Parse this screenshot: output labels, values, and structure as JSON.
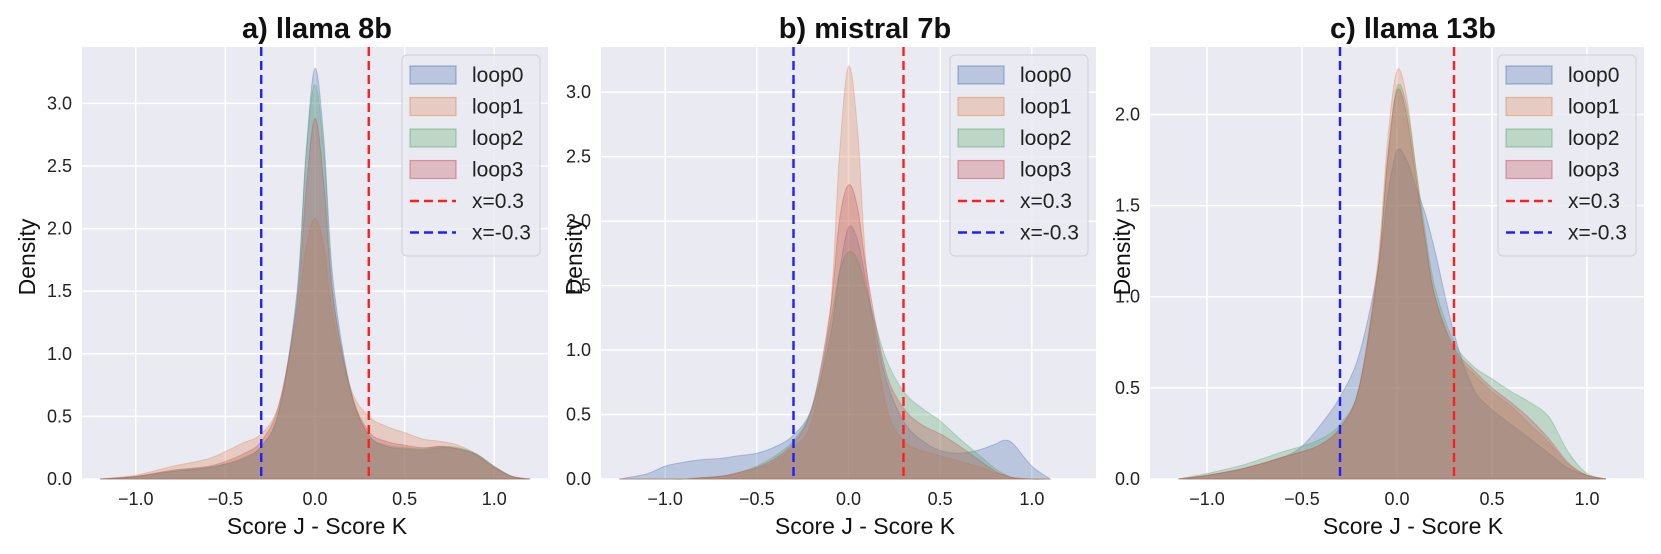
{
  "chart_data": [
    {
      "type": "area",
      "title": "a) llama 8b",
      "xlabel": "Score J - Score K",
      "ylabel": "Density",
      "xlim": [
        -1.3,
        1.3
      ],
      "ylim": [
        0,
        3.45
      ],
      "xticks": [
        -1.0,
        -0.5,
        0.0,
        0.5,
        1.0
      ],
      "xtick_labels": [
        "−1.0",
        "−0.5",
        "0.0",
        "0.5",
        "1.0"
      ],
      "yticks": [
        0,
        0.5,
        1.0,
        1.5,
        2.0,
        2.5,
        3.0
      ],
      "ytick_labels": [
        "0.0",
        "0.5",
        "1.0",
        "1.5",
        "2.0",
        "2.5",
        "3.0"
      ],
      "x": [
        -1.2,
        -1.0,
        -0.8,
        -0.6,
        -0.5,
        -0.4,
        -0.3,
        -0.2,
        -0.1,
        -0.05,
        0.0,
        0.05,
        0.1,
        0.2,
        0.3,
        0.4,
        0.5,
        0.6,
        0.7,
        0.8,
        0.9,
        1.0,
        1.1,
        1.2
      ],
      "series": [
        {
          "name": "loop0",
          "color": "#4c72b0",
          "values": [
            0,
            0.02,
            0.06,
            0.09,
            0.12,
            0.16,
            0.26,
            0.55,
            1.5,
            2.6,
            3.28,
            2.7,
            1.6,
            0.7,
            0.35,
            0.26,
            0.24,
            0.23,
            0.25,
            0.24,
            0.2,
            0.1,
            0.02,
            0
          ]
        },
        {
          "name": "loop1",
          "color": "#dd8452",
          "values": [
            0,
            0.03,
            0.1,
            0.16,
            0.22,
            0.29,
            0.36,
            0.6,
            1.3,
            1.85,
            2.08,
            1.85,
            1.3,
            0.72,
            0.5,
            0.42,
            0.37,
            0.32,
            0.3,
            0.27,
            0.2,
            0.1,
            0.02,
            0
          ]
        },
        {
          "name": "loop2",
          "color": "#55a868",
          "values": [
            0,
            0.02,
            0.06,
            0.09,
            0.12,
            0.17,
            0.26,
            0.55,
            1.45,
            2.6,
            3.15,
            2.6,
            1.5,
            0.7,
            0.35,
            0.27,
            0.25,
            0.24,
            0.26,
            0.25,
            0.2,
            0.1,
            0.02,
            0
          ]
        },
        {
          "name": "loop3",
          "color": "#c44e52",
          "values": [
            0,
            0.02,
            0.07,
            0.1,
            0.14,
            0.2,
            0.3,
            0.6,
            1.4,
            2.3,
            2.88,
            2.35,
            1.45,
            0.7,
            0.38,
            0.3,
            0.27,
            0.25,
            0.26,
            0.24,
            0.19,
            0.09,
            0.02,
            0
          ]
        }
      ],
      "vlines": [
        {
          "name": "x=0.3",
          "x": 0.3,
          "color": "#ff1f1f"
        },
        {
          "name": "x=-0.3",
          "x": -0.3,
          "color": "#1f1fff"
        }
      ],
      "legend": "top-right",
      "grid": true
    },
    {
      "type": "area",
      "title": "b) mistral 7b",
      "xlabel": "Score J - Score K",
      "ylabel": "Density",
      "xlim": [
        -1.35,
        1.35
      ],
      "ylim": [
        0,
        3.35
      ],
      "xticks": [
        -1.0,
        -0.5,
        0.0,
        0.5,
        1.0
      ],
      "xtick_labels": [
        "−1.0",
        "−0.5",
        "0.0",
        "0.5",
        "1.0"
      ],
      "yticks": [
        0,
        0.5,
        1.0,
        1.5,
        2.0,
        2.5,
        3.0
      ],
      "ytick_labels": [
        "0.0",
        "0.5",
        "1.0",
        "1.5",
        "2.0",
        "2.5",
        "3.0"
      ],
      "x": [
        -1.25,
        -1.1,
        -1.0,
        -0.9,
        -0.8,
        -0.7,
        -0.6,
        -0.5,
        -0.4,
        -0.3,
        -0.2,
        -0.1,
        -0.05,
        0.0,
        0.05,
        0.1,
        0.2,
        0.3,
        0.4,
        0.5,
        0.6,
        0.7,
        0.8,
        0.85,
        0.9,
        1.0,
        1.1
      ],
      "series": [
        {
          "name": "loop0",
          "color": "#4c72b0",
          "values": [
            0,
            0.04,
            0.1,
            0.13,
            0.15,
            0.16,
            0.18,
            0.2,
            0.25,
            0.34,
            0.55,
            1.1,
            1.6,
            1.95,
            1.85,
            1.5,
            0.8,
            0.45,
            0.3,
            0.22,
            0.2,
            0.22,
            0.27,
            0.3,
            0.27,
            0.1,
            0
          ]
        },
        {
          "name": "loop1",
          "color": "#dd8452",
          "values": [
            0,
            0,
            0,
            0,
            0.01,
            0.02,
            0.04,
            0.08,
            0.14,
            0.25,
            0.45,
            1.3,
            2.5,
            3.2,
            2.7,
            1.6,
            0.6,
            0.3,
            0.22,
            0.18,
            0.14,
            0.1,
            0.05,
            0.03,
            0.01,
            0,
            0
          ]
        },
        {
          "name": "loop2",
          "color": "#55a868",
          "values": [
            0,
            0,
            0,
            0,
            0.01,
            0.02,
            0.05,
            0.1,
            0.18,
            0.3,
            0.55,
            1.2,
            1.6,
            1.76,
            1.7,
            1.45,
            0.95,
            0.68,
            0.55,
            0.45,
            0.32,
            0.2,
            0.08,
            0.04,
            0.01,
            0,
            0
          ]
        },
        {
          "name": "loop3",
          "color": "#c44e52",
          "values": [
            0,
            0,
            0,
            0,
            0.01,
            0.02,
            0.05,
            0.09,
            0.16,
            0.28,
            0.55,
            1.3,
            2.0,
            2.28,
            2.1,
            1.6,
            0.85,
            0.55,
            0.42,
            0.35,
            0.26,
            0.16,
            0.06,
            0.03,
            0.01,
            0,
            0
          ]
        }
      ],
      "vlines": [
        {
          "name": "x=0.3",
          "x": 0.3,
          "color": "#ff1f1f"
        },
        {
          "name": "x=-0.3",
          "x": -0.3,
          "color": "#1f1fff"
        }
      ],
      "legend": "top-right",
      "grid": true
    },
    {
      "type": "area",
      "title": "c) llama 13b",
      "xlabel": "Score J - Score K",
      "ylabel": "Density",
      "xlim": [
        -1.3,
        1.3
      ],
      "ylim": [
        0,
        2.37
      ],
      "xticks": [
        -1.0,
        -0.5,
        0.0,
        0.5,
        1.0
      ],
      "xtick_labels": [
        "−1.0",
        "−0.5",
        "0.0",
        "0.5",
        "1.0"
      ],
      "yticks": [
        0,
        0.5,
        1.0,
        1.5,
        2.0
      ],
      "ytick_labels": [
        "0.0",
        "0.5",
        "1.0",
        "1.5",
        "2.0"
      ],
      "x": [
        -1.15,
        -1.0,
        -0.8,
        -0.6,
        -0.5,
        -0.4,
        -0.3,
        -0.2,
        -0.1,
        -0.05,
        0.0,
        0.05,
        0.1,
        0.15,
        0.2,
        0.3,
        0.4,
        0.5,
        0.6,
        0.7,
        0.8,
        0.9,
        1.0,
        1.1
      ],
      "series": [
        {
          "name": "loop0",
          "color": "#4c72b0",
          "values": [
            0,
            0.02,
            0.06,
            0.12,
            0.18,
            0.3,
            0.45,
            0.68,
            1.15,
            1.55,
            1.8,
            1.75,
            1.6,
            1.45,
            1.25,
            0.8,
            0.5,
            0.38,
            0.3,
            0.22,
            0.14,
            0.06,
            0.02,
            0
          ]
        },
        {
          "name": "loop1",
          "color": "#dd8452",
          "values": [
            0,
            0.02,
            0.06,
            0.12,
            0.15,
            0.19,
            0.28,
            0.5,
            1.2,
            1.85,
            2.24,
            2.1,
            1.7,
            1.3,
            1.0,
            0.7,
            0.58,
            0.48,
            0.4,
            0.3,
            0.2,
            0.08,
            0.02,
            0
          ]
        },
        {
          "name": "loop2",
          "color": "#55a868",
          "values": [
            0,
            0.03,
            0.08,
            0.15,
            0.18,
            0.22,
            0.3,
            0.5,
            1.15,
            1.75,
            2.15,
            2.05,
            1.7,
            1.35,
            1.05,
            0.75,
            0.62,
            0.55,
            0.48,
            0.42,
            0.34,
            0.15,
            0.03,
            0
          ]
        },
        {
          "name": "loop3",
          "color": "#c44e52",
          "values": [
            0,
            0.02,
            0.06,
            0.12,
            0.15,
            0.19,
            0.28,
            0.5,
            1.15,
            1.75,
            2.13,
            2.0,
            1.65,
            1.3,
            1.0,
            0.72,
            0.6,
            0.5,
            0.42,
            0.33,
            0.22,
            0.09,
            0.02,
            0
          ]
        }
      ],
      "vlines": [
        {
          "name": "x=0.3",
          "x": 0.3,
          "color": "#ff1f1f"
        },
        {
          "name": "x=-0.3",
          "x": -0.3,
          "color": "#1f1fff"
        }
      ],
      "legend": "top-right",
      "grid": true
    }
  ]
}
